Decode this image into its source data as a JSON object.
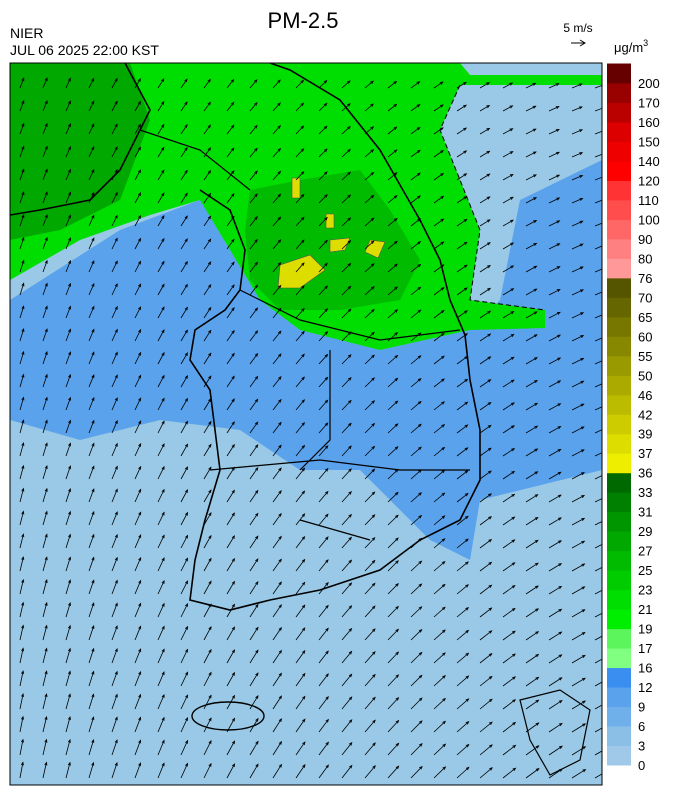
{
  "header": {
    "title": "PM-2.5",
    "agency": "NIER",
    "datetime": "JUL 06 2025 22:00 KST",
    "wind_scale": "5 m/s",
    "unit_base": "μg/m",
    "unit_exp": "3"
  },
  "colorbar": {
    "ticks": [
      0,
      3,
      6,
      9,
      12,
      16,
      17,
      19,
      21,
      23,
      25,
      27,
      29,
      31,
      33,
      36,
      37,
      39,
      42,
      46,
      50,
      55,
      60,
      65,
      70,
      76,
      80,
      90,
      100,
      110,
      120,
      140,
      150,
      160,
      170,
      200
    ],
    "colors": [
      "#a0c8e8",
      "#8bbfe6",
      "#6fb0ea",
      "#5aa2ec",
      "#3a8ef0",
      "#80ff80",
      "#5cf55c",
      "#00ee00",
      "#00dd00",
      "#00cc00",
      "#00bb00",
      "#00a800",
      "#009600",
      "#008000",
      "#006a00",
      "#eeee00",
      "#dddd00",
      "#cccc00",
      "#bbbb00",
      "#aaaa00",
      "#999900",
      "#888800",
      "#777700",
      "#666600",
      "#555500",
      "#ff9999",
      "#ff8080",
      "#ff6666",
      "#ff4d4d",
      "#ff3333",
      "#ff0000",
      "#ee0000",
      "#dd0000",
      "#bb0000",
      "#990000",
      "#660000"
    ]
  }
}
